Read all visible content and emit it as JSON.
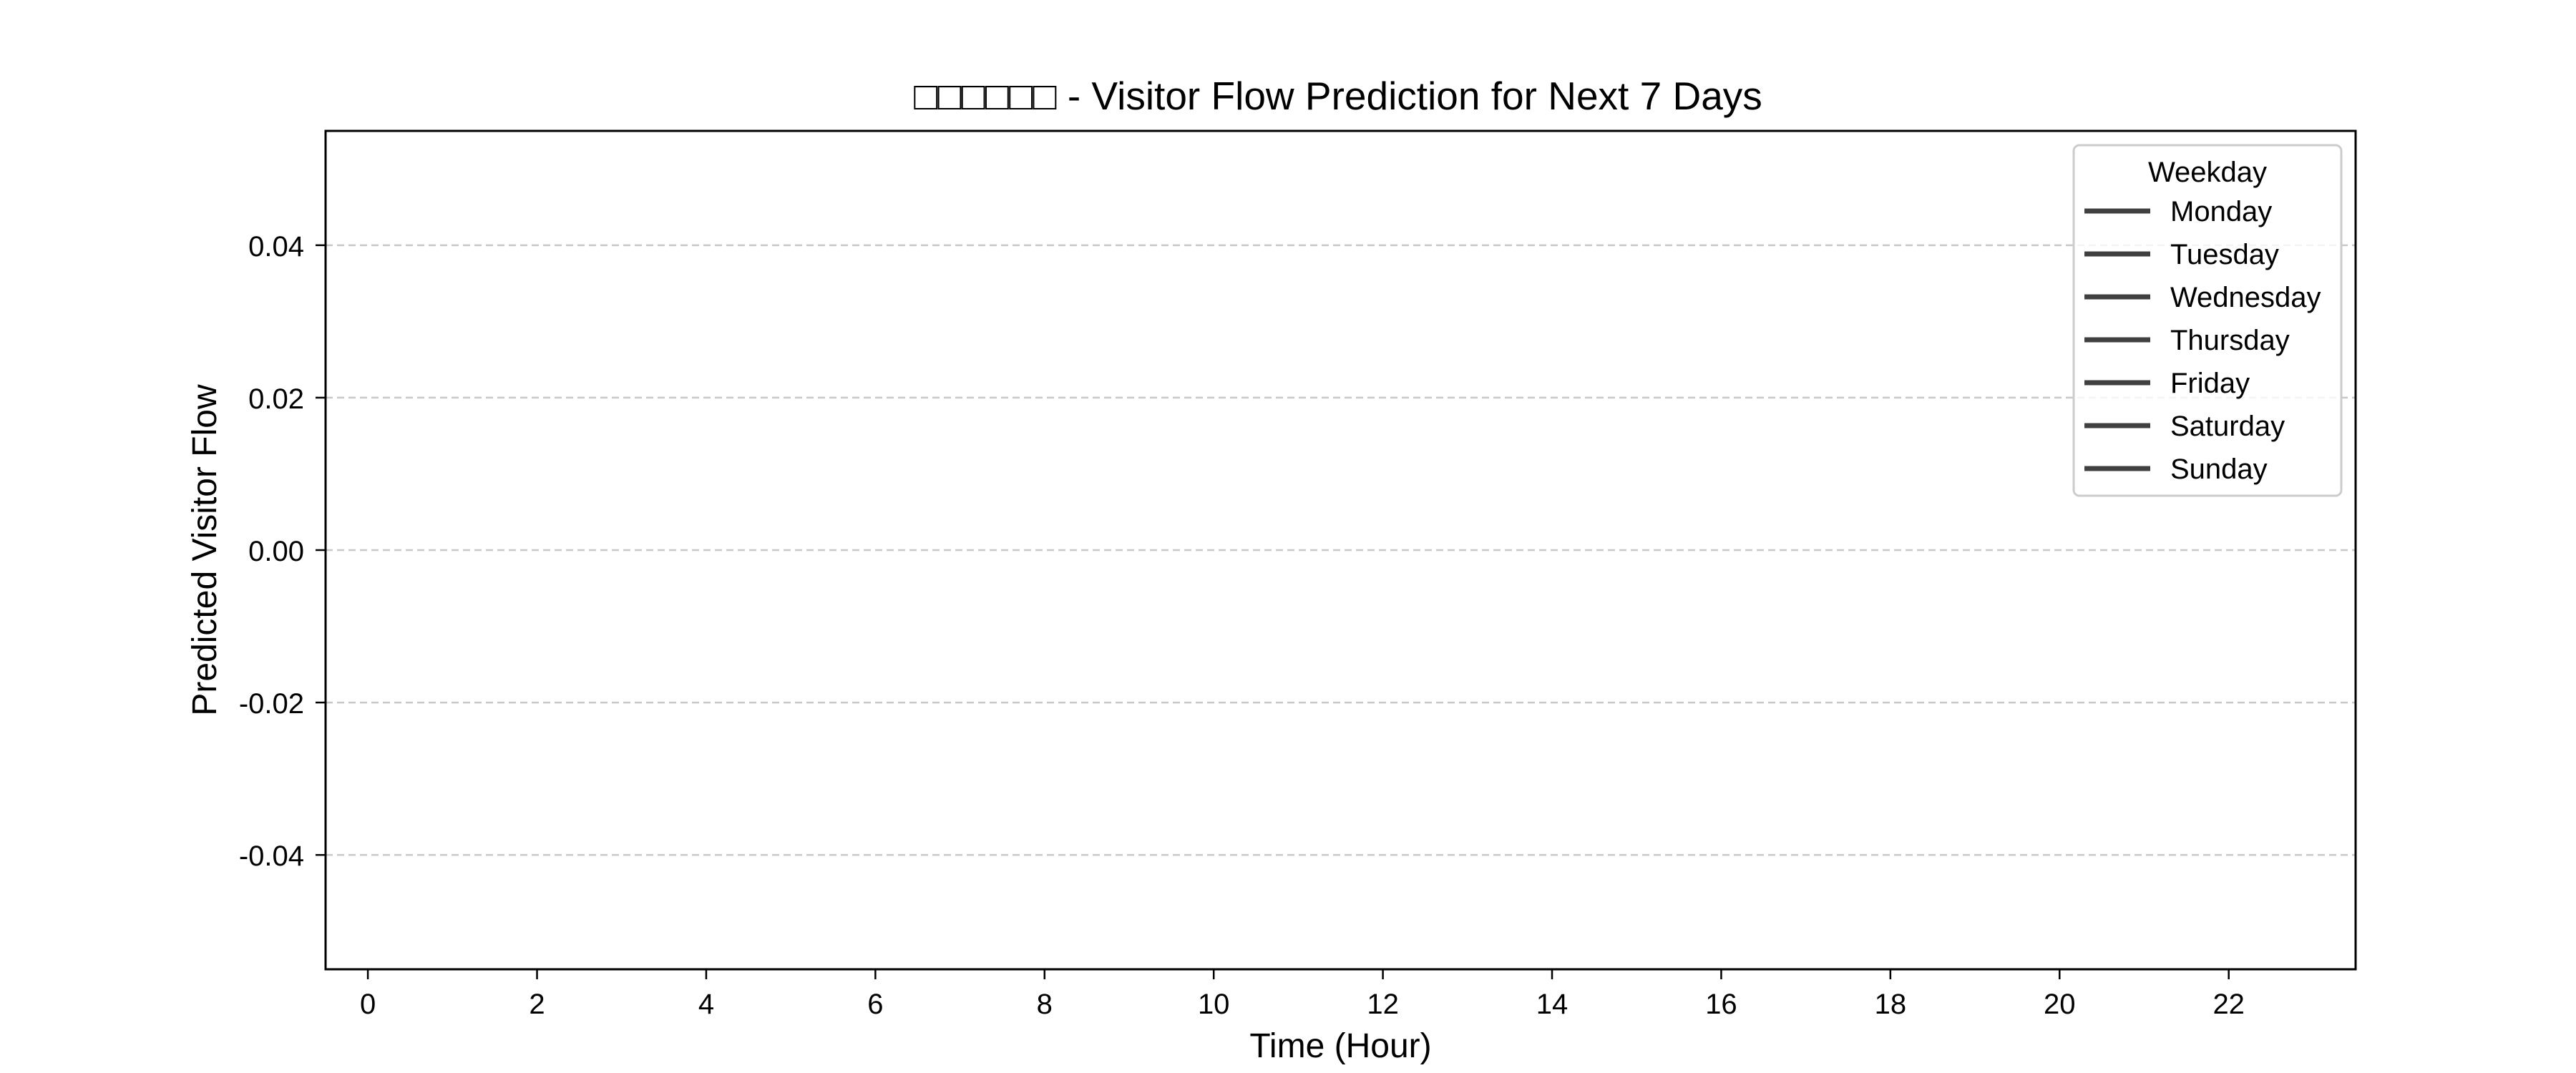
{
  "chart_data": {
    "type": "line",
    "title": "□□□□□□ - Visitor Flow Prediction for Next 7 Days",
    "xlabel": "Time (Hour)",
    "ylabel": "Predicted Visitor Flow",
    "xlim": [
      -0.5,
      23.5
    ],
    "ylim": [
      -0.055,
      0.055
    ],
    "x_ticks": [
      0,
      2,
      4,
      6,
      8,
      10,
      12,
      14,
      16,
      18,
      20,
      22
    ],
    "y_ticks": [
      -0.04,
      -0.02,
      0.0,
      0.02,
      0.04
    ],
    "y_tick_labels": [
      "-0.04",
      "-0.02",
      "0.00",
      "0.02",
      "0.04"
    ],
    "grid": "y-dashed",
    "legend": {
      "title": "Weekday",
      "placement": "top-right",
      "entries": [
        "Monday",
        "Tuesday",
        "Wednesday",
        "Thursday",
        "Friday",
        "Saturday",
        "Sunday"
      ]
    },
    "series": [
      {
        "name": "Monday",
        "x": [],
        "y": [],
        "color": "#404040"
      },
      {
        "name": "Tuesday",
        "x": [],
        "y": [],
        "color": "#404040"
      },
      {
        "name": "Wednesday",
        "x": [],
        "y": [],
        "color": "#404040"
      },
      {
        "name": "Thursday",
        "x": [],
        "y": [],
        "color": "#404040"
      },
      {
        "name": "Friday",
        "x": [],
        "y": [],
        "color": "#404040"
      },
      {
        "name": "Saturday",
        "x": [],
        "y": [],
        "color": "#404040"
      },
      {
        "name": "Sunday",
        "x": [],
        "y": [],
        "color": "#404040"
      }
    ],
    "colors": {
      "grid": "#c8c8c8",
      "axes": "#000000",
      "legend_line": "#404040",
      "legend_border": "#cccccc"
    }
  }
}
